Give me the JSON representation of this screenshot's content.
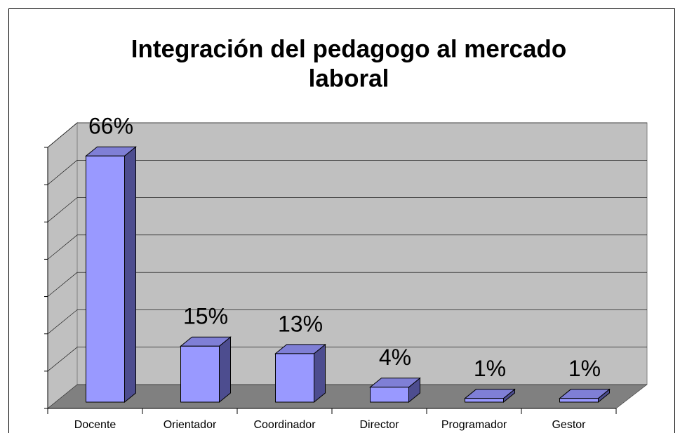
{
  "chart_data": {
    "type": "bar3d",
    "title": [
      "Integración del pedagogo al mercado",
      "laboral"
    ],
    "categories": [
      "Docente",
      "Orientador",
      "Coordinador",
      "Director",
      "Programador",
      "Gestor"
    ],
    "values": [
      66,
      15,
      13,
      4,
      1,
      1
    ],
    "value_labels": [
      "66%",
      "15%",
      "13%",
      "4%",
      "1%",
      "1%"
    ],
    "color": "#9999ff",
    "ylim": [
      0,
      70
    ],
    "yticks": [
      0,
      10,
      20,
      30,
      40,
      50,
      60,
      70
    ],
    "grid": true
  }
}
